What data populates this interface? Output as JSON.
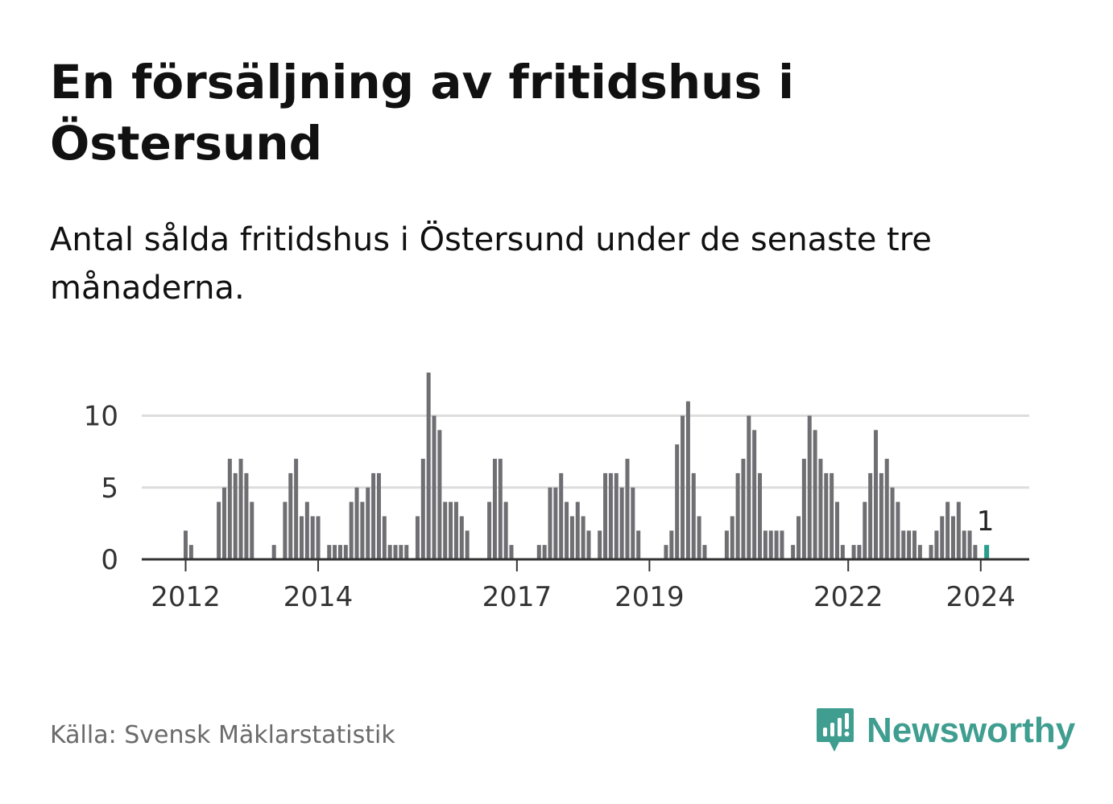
{
  "title": "En försäljning av fritidshus i Östersund",
  "subtitle": "Antal sålda fritidshus i Östersund under de senaste tre månaderna.",
  "source": "Källa: Svensk Mäklarstatistik",
  "brand": {
    "name": "Newsworthy",
    "icon": "newsworthy-logo-icon",
    "color": "#3f9e90"
  },
  "colors": {
    "bar": "#6e6e73",
    "highlight": "#2a9d8f",
    "grid": "#dddddd",
    "axis": "#333333"
  },
  "chart_data": {
    "type": "bar",
    "title": "En försäljning av fritidshus i Östersund",
    "xlabel": "",
    "ylabel": "",
    "ylim": [
      0,
      13
    ],
    "yticks": [
      0,
      5,
      10
    ],
    "xticks": [
      {
        "label": "2012",
        "index": 8
      },
      {
        "label": "2014",
        "index": 32
      },
      {
        "label": "2017",
        "index": 68
      },
      {
        "label": "2019",
        "index": 92
      },
      {
        "label": "2022",
        "index": 128
      },
      {
        "label": "2024",
        "index": 152
      }
    ],
    "values": [
      0,
      0,
      0,
      0,
      0,
      0,
      0,
      0,
      2,
      1,
      0,
      0,
      0,
      0,
      4,
      5,
      7,
      6,
      7,
      6,
      4,
      0,
      0,
      0,
      1,
      0,
      4,
      6,
      7,
      3,
      4,
      3,
      3,
      0,
      1,
      1,
      1,
      1,
      4,
      5,
      4,
      5,
      6,
      6,
      3,
      1,
      1,
      1,
      1,
      0,
      3,
      7,
      13,
      10,
      9,
      4,
      4,
      4,
      3,
      2,
      0,
      0,
      0,
      4,
      7,
      7,
      4,
      1,
      0,
      0,
      0,
      0,
      1,
      1,
      5,
      5,
      6,
      4,
      3,
      4,
      3,
      2,
      0,
      2,
      6,
      6,
      6,
      5,
      7,
      5,
      2,
      0,
      0,
      0,
      0,
      1,
      2,
      8,
      10,
      11,
      6,
      3,
      1,
      0,
      0,
      0,
      2,
      3,
      6,
      7,
      10,
      9,
      6,
      2,
      2,
      2,
      2,
      0,
      1,
      3,
      7,
      10,
      9,
      7,
      6,
      6,
      4,
      1,
      0,
      1,
      1,
      4,
      6,
      9,
      6,
      7,
      5,
      4,
      2,
      2,
      2,
      1,
      0,
      1,
      2,
      3,
      4,
      3,
      4,
      2,
      2,
      1
    ],
    "highlight_index": 153,
    "highlight_label": "1"
  }
}
